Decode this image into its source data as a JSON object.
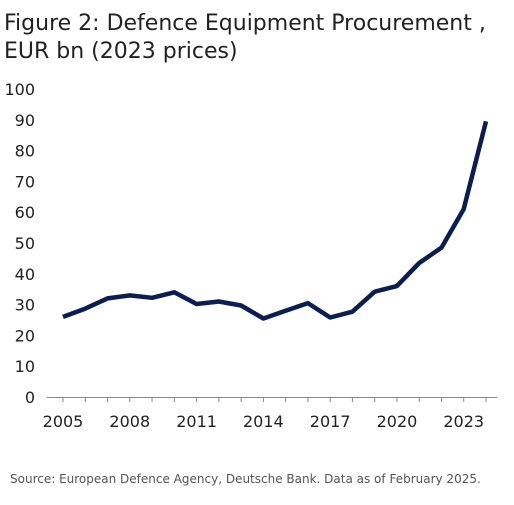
{
  "chart_data": {
    "type": "line",
    "title_lines": [
      "Figure 2: Defence Equipment Procurement ,",
      "EUR bn (2023 prices)"
    ],
    "xlabel": "",
    "ylabel": "",
    "x": [
      2005,
      2006,
      2007,
      2008,
      2009,
      2010,
      2011,
      2012,
      2013,
      2014,
      2015,
      2016,
      2017,
      2018,
      2019,
      2020,
      2021,
      2022,
      2023,
      2024
    ],
    "series": [
      {
        "values": [
          26,
          28.7,
          32,
          33,
          32.2,
          34,
          30.2,
          31,
          29.7,
          25.5,
          28,
          30.5,
          25.8,
          27.7,
          34.2,
          36,
          43.5,
          48.5,
          61,
          89.5
        ],
        "color": "#0b1e4f"
      }
    ],
    "xticks": [
      "2005",
      "2008",
      "2011",
      "2014",
      "2017",
      "2020",
      "2023"
    ],
    "yticks": [
      "0",
      "10",
      "20",
      "30",
      "40",
      "50",
      "60",
      "70",
      "80",
      "90",
      "100"
    ],
    "xlim": [
      2005,
      2024
    ],
    "ylim": [
      0,
      100
    ],
    "grid": false,
    "source": "Source: European Defence Agency, Deutsche Bank. Data as of February 2025."
  }
}
